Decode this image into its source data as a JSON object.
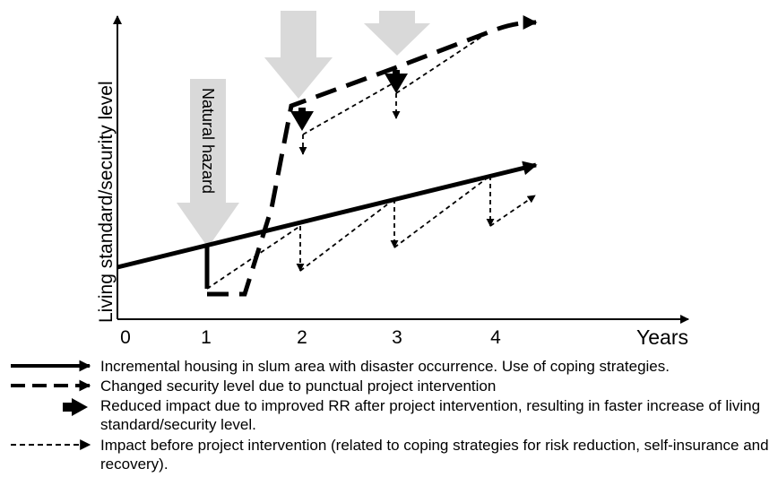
{
  "axes": {
    "y_label": "Living standard/security level",
    "x_label": "Years",
    "x_ticks": [
      "0",
      "1",
      "2",
      "3",
      "4"
    ]
  },
  "annotations": {
    "hazard_label": "Natural hazard"
  },
  "colors": {
    "line": "#000000",
    "hazard_arrow": "#d9d9d9",
    "background": "#ffffff"
  },
  "legend": [
    {
      "icon": "solid-arrow-icon",
      "text": "Incremental housing in slum area with disaster occurrence. Use of coping strategies."
    },
    {
      "icon": "dashed-arrow-icon",
      "text": "Changed security level due to punctual project intervention"
    },
    {
      "icon": "block-arrow-down-icon",
      "text": "Reduced impact due to improved RR after project intervention, resulting in faster increase of living standard/security level."
    },
    {
      "icon": "dotted-arrow-icon",
      "text": "Impact before project intervention (related to coping strategies for risk reduction, self-insurance and recovery)."
    }
  ]
}
